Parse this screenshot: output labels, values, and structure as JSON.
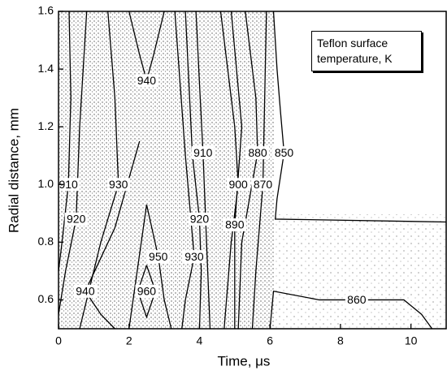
{
  "chart_data": {
    "type": "contour",
    "annotation": "Teflon surface temperature, K",
    "xlabel": "Time, μs",
    "ylabel": "Radial distance, mm",
    "xlim": [
      0,
      11
    ],
    "ylim": [
      0.5,
      1.6
    ],
    "xticks": [
      0,
      2,
      4,
      6,
      8,
      10
    ],
    "yticks": [
      0.6,
      0.8,
      {
        "value": 1,
        "label": "1.0"
      },
      1.2,
      1.4,
      1.6
    ],
    "color": "#000000",
    "contours": [
      {
        "level": 910,
        "x": [
          0.3,
          0.35,
          0.28,
          0.1,
          0
        ],
        "y": [
          1.6,
          1.3,
          1.0,
          0.8,
          0.7
        ]
      },
      {
        "level": 920,
        "x": [
          0.8,
          0.6,
          0.5,
          0.2,
          0
        ],
        "y": [
          1.6,
          1.2,
          0.88,
          0.7,
          0.55
        ]
      },
      {
        "level": 930,
        "x": [
          1.4,
          1.6,
          1.7,
          1.2,
          0.6
        ],
        "y": [
          1.6,
          1.3,
          1.0,
          0.8,
          0.5
        ]
      },
      {
        "level": 940,
        "x": [
          1.6,
          1.2,
          0.76,
          1.6,
          2.3
        ],
        "y": [
          0.5,
          0.55,
          0.63,
          0.85,
          1.15
        ]
      },
      {
        "level": 940,
        "x": [
          2.0,
          2.3,
          2.5,
          2.7,
          3.0
        ],
        "y": [
          1.6,
          1.45,
          1.36,
          1.45,
          1.6
        ]
      },
      {
        "level": 950,
        "x": [
          2.0,
          2.5,
          2.83,
          3.0,
          3.2
        ],
        "y": [
          0.5,
          0.93,
          0.75,
          0.6,
          0.5
        ]
      },
      {
        "level": 960,
        "x": [
          2.5,
          2.25,
          2.5,
          2.75,
          2.5
        ],
        "y": [
          0.72,
          0.63,
          0.54,
          0.63,
          0.72
        ]
      },
      {
        "level": 930,
        "x": [
          3.3,
          3.6,
          3.85,
          3.6,
          3.5
        ],
        "y": [
          1.6,
          1.1,
          0.75,
          0.6,
          0.5
        ]
      },
      {
        "level": 920,
        "x": [
          3.6,
          3.8,
          4.0,
          4.05,
          4.0
        ],
        "y": [
          1.6,
          1.1,
          0.88,
          0.7,
          0.5
        ]
      },
      {
        "level": 910,
        "x": [
          3.9,
          4.0,
          4.1,
          4.2,
          4.3
        ],
        "y": [
          1.6,
          1.35,
          1.11,
          0.8,
          0.5
        ]
      },
      {
        "level": 900,
        "x": [
          4.6,
          5.0,
          5.1,
          4.9,
          4.7
        ],
        "y": [
          1.6,
          1.2,
          1.0,
          0.8,
          0.5
        ]
      },
      {
        "level": 890,
        "x": [
          4.9,
          5.2,
          5.0,
          5.0,
          5.0
        ],
        "y": [
          1.6,
          1.2,
          0.86,
          0.7,
          0.5
        ]
      },
      {
        "level": 880,
        "x": [
          5.3,
          5.6,
          5.65,
          5.2,
          5.1
        ],
        "y": [
          1.6,
          1.3,
          1.11,
          0.8,
          0.5
        ]
      },
      {
        "level": 870,
        "x": [
          5.9,
          5.85,
          5.8,
          5.6,
          5.5
        ],
        "y": [
          1.6,
          1.3,
          1.0,
          0.7,
          0.5
        ]
      },
      {
        "level": 850,
        "x": [
          6.1,
          6.2,
          6.3,
          6.4,
          6.2,
          6.15,
          11
        ],
        "y": [
          1.6,
          1.4,
          1.25,
          1.11,
          0.95,
          0.88,
          0.87
        ]
      },
      {
        "level": 860,
        "x": [
          6.0,
          6.1,
          7.4,
          8.46,
          9.8,
          10.3,
          10.6
        ],
        "y": [
          0.5,
          0.63,
          0.6,
          0.6,
          0.6,
          0.55,
          0.5
        ]
      }
    ]
  }
}
